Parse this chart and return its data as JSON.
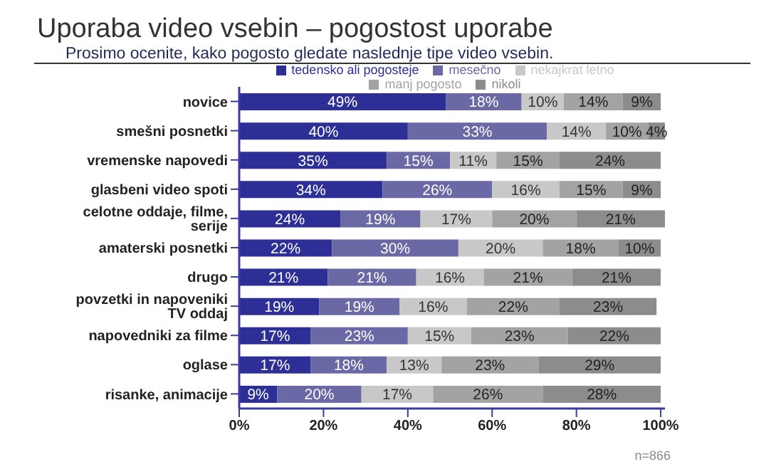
{
  "chart_data": {
    "type": "bar",
    "orientation": "horizontal",
    "stacked": true,
    "title": "Uporaba video vsebin – pogostost uporabe",
    "subtitle": "Prosimo ocenite, kako pogosto gledate naslednje tipe video vsebin.",
    "categories": [
      "novice",
      "smešni posnetki",
      "vremenske napovedi",
      "glasbeni video spoti",
      "celotne oddaje, filme, serije",
      "amaterski posnetki",
      "drugo",
      "povzetki in napoveniki TV oddaj",
      "napovedniki za filme",
      "oglase",
      "risanke, animacije"
    ],
    "series": [
      {
        "name": "tedensko ali pogosteje",
        "color": "#2e2f96",
        "values": [
          49,
          40,
          35,
          34,
          24,
          22,
          21,
          19,
          17,
          17,
          9
        ],
        "value_labels": [
          "49%",
          "40%",
          "35%",
          "34%",
          "24%",
          "22%",
          "21%",
          "19%",
          "17%",
          "17%",
          "9%"
        ]
      },
      {
        "name": "mesečno",
        "color": "#6a69a6",
        "values": [
          18,
          33,
          15,
          26,
          19,
          30,
          21,
          19,
          23,
          18,
          20
        ],
        "value_labels": [
          "18%",
          "33%",
          "15%",
          "26%",
          "19%",
          "30%",
          "21%",
          "19%",
          "23%",
          "18%",
          "20%"
        ]
      },
      {
        "name": "nekajkrat letno",
        "color": "#c8c8c8",
        "values": [
          10,
          14,
          11,
          16,
          17,
          20,
          16,
          16,
          15,
          13,
          17
        ],
        "value_labels": [
          "10%",
          "14%",
          "11%",
          "16%",
          "17%",
          "20%",
          "16%",
          "16%",
          "15%",
          "13%",
          "17%"
        ]
      },
      {
        "name": "manj pogosto",
        "color": "#a3a3a3",
        "values": [
          14,
          10,
          15,
          15,
          20,
          18,
          21,
          22,
          23,
          23,
          26
        ],
        "value_labels": [
          "14%",
          "10%",
          "15%",
          "15%",
          "20%",
          "18%",
          "21%",
          "22%",
          "23%",
          "23%",
          "26%"
        ]
      },
      {
        "name": "nikoli",
        "color": "#8c8c8c",
        "values": [
          9,
          4,
          24,
          9,
          21,
          10,
          21,
          23,
          22,
          29,
          28
        ],
        "value_labels": [
          "9%",
          "4%",
          "24%",
          "9%",
          "21%",
          "10%",
          "21%",
          "23%",
          "22%",
          "29%",
          "28%"
        ]
      }
    ],
    "xlim": [
      0,
      101
    ],
    "xticks": [
      {
        "value": 0,
        "label": "0%"
      },
      {
        "value": 20,
        "label": "20%"
      },
      {
        "value": 40,
        "label": "40%"
      },
      {
        "value": 60,
        "label": "60%"
      },
      {
        "value": 80,
        "label": "80%"
      },
      {
        "value": 100,
        "label": "100%"
      }
    ],
    "legend": "top",
    "grid": false,
    "annotations": [
      "n=866"
    ]
  }
}
